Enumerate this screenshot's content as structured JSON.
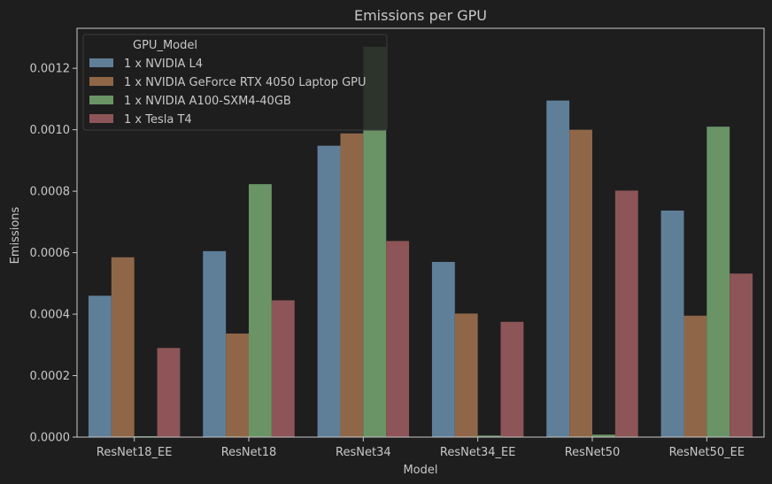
{
  "chart_data": {
    "type": "bar",
    "title": "Emissions per GPU",
    "xlabel": "Model",
    "ylabel": "Emissions",
    "categories": [
      "ResNet18_EE",
      "ResNet18",
      "ResNet34",
      "ResNet34_EE",
      "ResNet50",
      "ResNet50_EE"
    ],
    "ylim": [
      0,
      0.00133
    ],
    "yticks": [
      0.0,
      0.0002,
      0.0004,
      0.0006,
      0.0008,
      0.001,
      0.0012
    ],
    "ytick_labels": [
      "0.0000",
      "0.0002",
      "0.0004",
      "0.0006",
      "0.0008",
      "0.0010",
      "0.0012"
    ],
    "grid": false,
    "legend": {
      "title": "GPU_Model",
      "placement": "top-left"
    },
    "series": [
      {
        "name": "1 x NVIDIA L4",
        "color": "#5f7f99",
        "values": [
          0.00046,
          0.000605,
          0.000948,
          0.00057,
          0.001095,
          0.000737
        ]
      },
      {
        "name": "1 x NVIDIA GeForce RTX 4050 Laptop GPU",
        "color": "#8f6748",
        "values": [
          0.000585,
          0.000337,
          0.000988,
          0.000402,
          0.001,
          0.000395
        ]
      },
      {
        "name": "1 x NVIDIA A100-SXM4-40GB",
        "color": "#6a9466",
        "values": [
          3e-06,
          0.000823,
          0.00127,
          5e-06,
          8e-06,
          0.00101
        ]
      },
      {
        "name": "1 x Tesla T4",
        "color": "#8d5557",
        "values": [
          0.00029,
          0.000445,
          0.000638,
          0.000375,
          0.000802,
          0.000532
        ]
      }
    ]
  }
}
